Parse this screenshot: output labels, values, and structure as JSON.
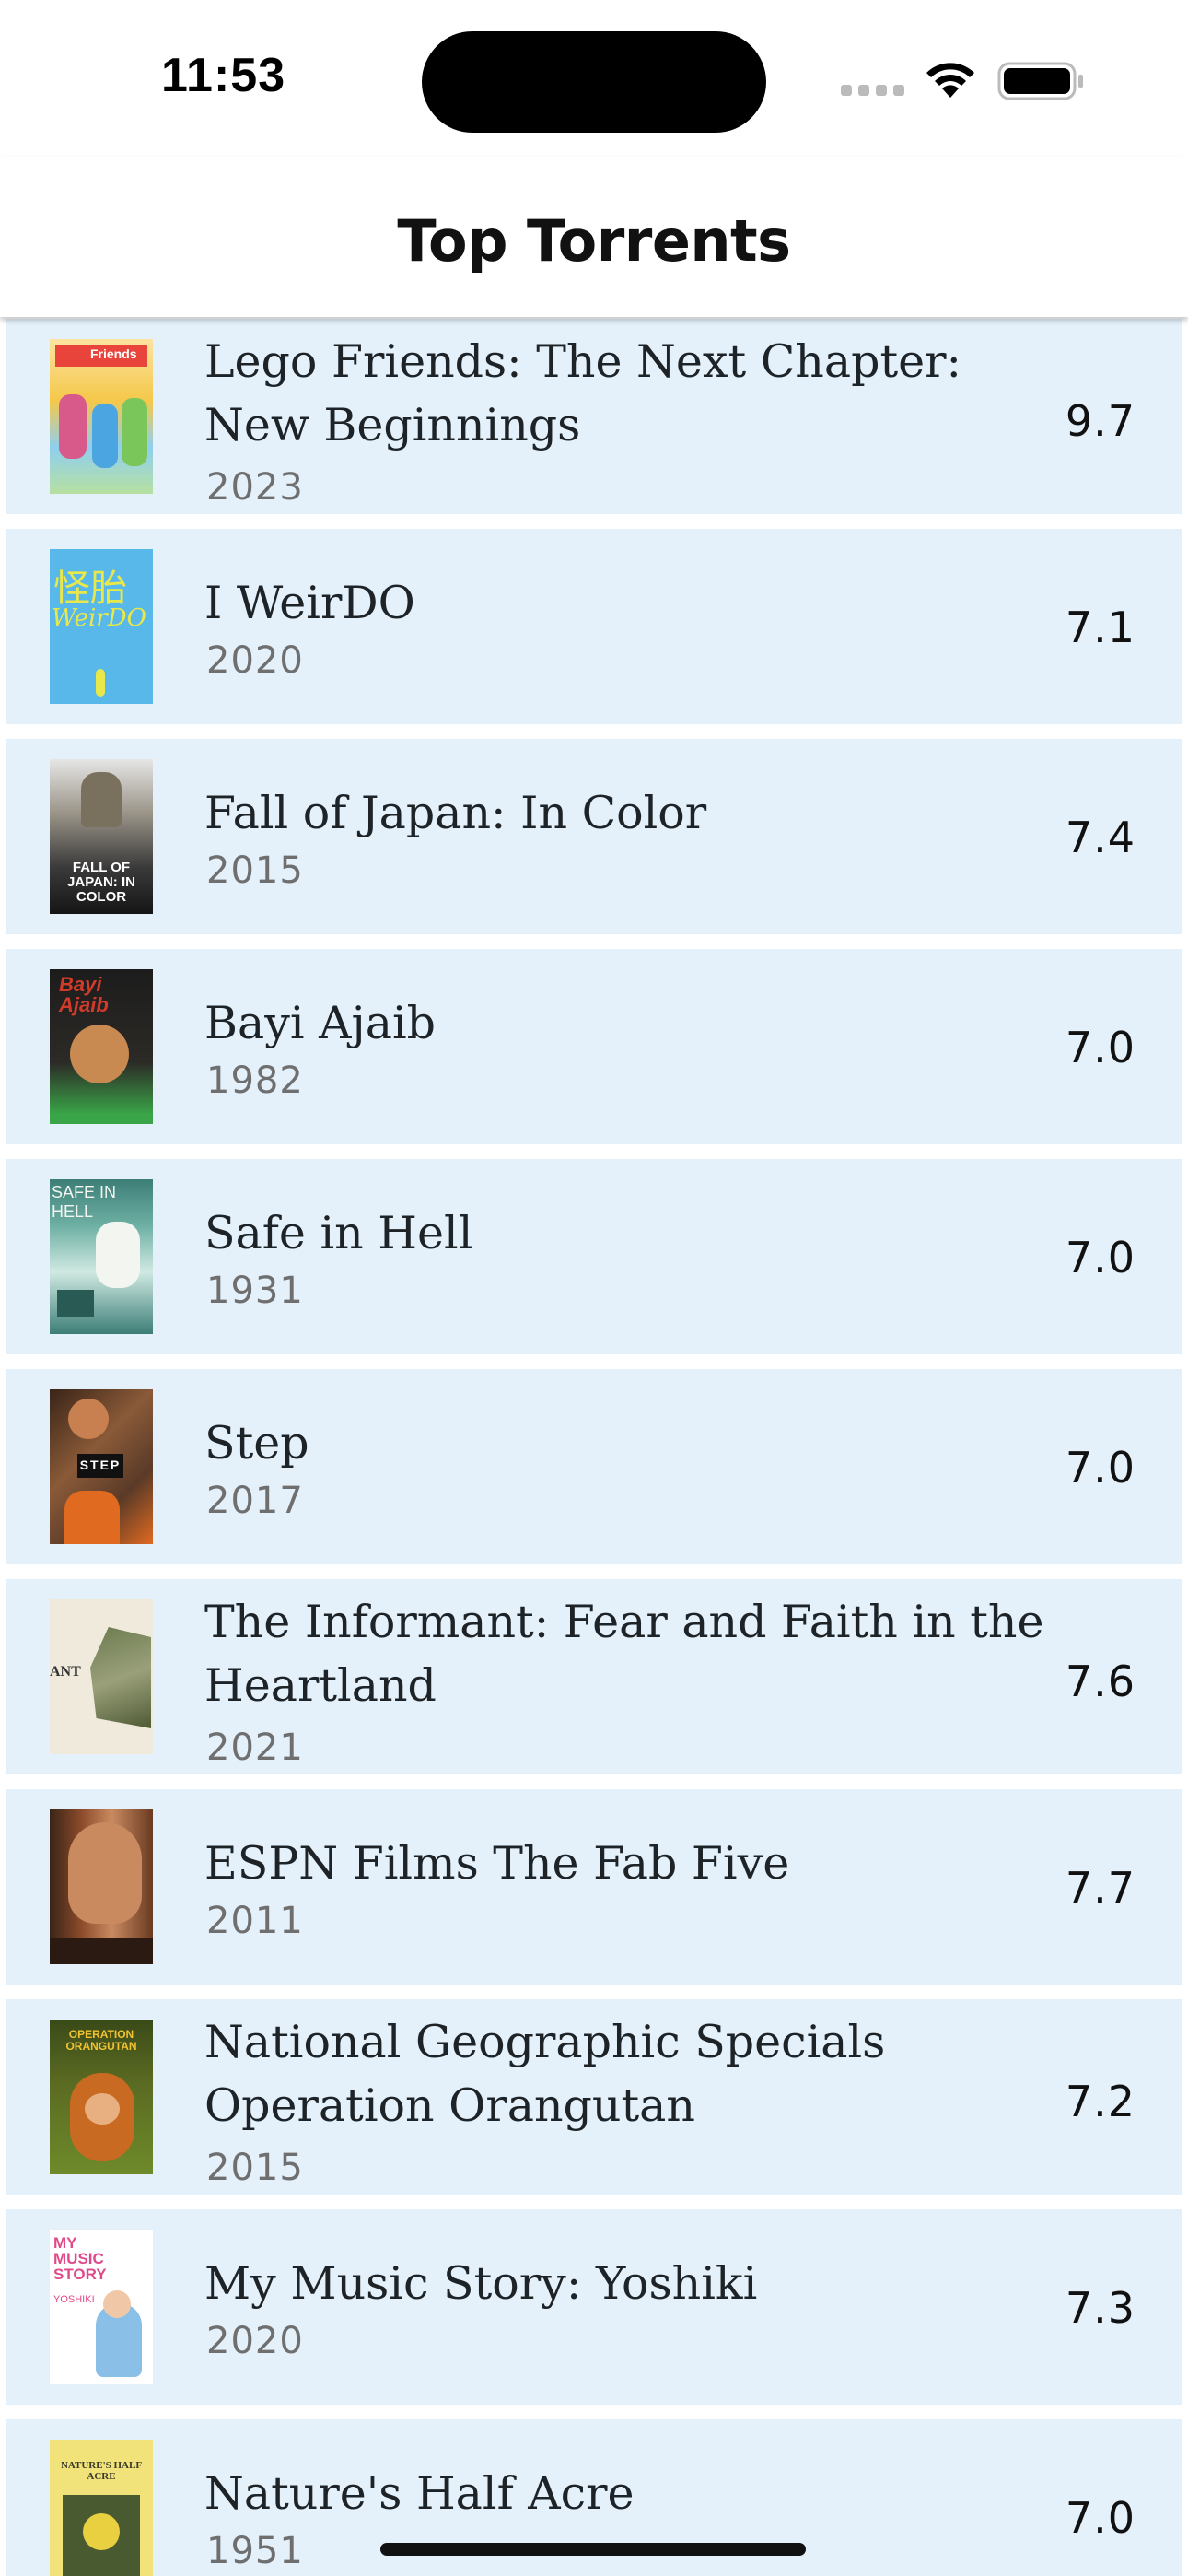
{
  "status_bar": {
    "time": "11:53"
  },
  "header": {
    "title": "Top Torrents"
  },
  "movies": [
    {
      "title": "Lego Friends: The Next Chapter: New Beginnings",
      "year": "2023",
      "rating": "9.7",
      "poster_colors": [
        "#fdd24a",
        "#e8443b",
        "#4aa5e0"
      ]
    },
    {
      "title": "I WeirDO",
      "year": "2020",
      "rating": "7.1",
      "poster_colors": [
        "#58b8ea",
        "#e8e84a",
        "#5aaedd"
      ]
    },
    {
      "title": "Fall of Japan: In Color",
      "year": "2015",
      "rating": "7.4",
      "poster_colors": [
        "#3a3a3a",
        "#8a8070",
        "#1a1a1a"
      ]
    },
    {
      "title": "Bayi Ajaib",
      "year": "1982",
      "rating": "7.0",
      "poster_colors": [
        "#1c1c1c",
        "#d23b2a",
        "#3aa548"
      ]
    },
    {
      "title": "Safe in Hell",
      "year": "1931",
      "rating": "7.0",
      "poster_colors": [
        "#cfe9e2",
        "#3c7e77",
        "#f2f5f0"
      ]
    },
    {
      "title": "Step",
      "year": "2017",
      "rating": "7.0",
      "poster_colors": [
        "#5a3a28",
        "#c88050",
        "#e06a20"
      ]
    },
    {
      "title": "The Informant: Fear and Faith in the Heartland",
      "year": "2021",
      "rating": "7.6",
      "poster_colors": [
        "#efeadb",
        "#6b7a4e",
        "#e9e2cc"
      ]
    },
    {
      "title": "ESPN Films The Fab Five",
      "year": "2011",
      "rating": "7.7",
      "poster_colors": [
        "#8a4a2a",
        "#c98a60",
        "#3a2418"
      ]
    },
    {
      "title": "National Geographic Specials Operation Orangutan",
      "year": "2015",
      "rating": "7.2",
      "poster_colors": [
        "#3a4a18",
        "#c86a22",
        "#6e8a2a"
      ]
    },
    {
      "title": "My Music Story: Yoshiki",
      "year": "2020",
      "rating": "7.3",
      "poster_colors": [
        "#ffffff",
        "#e04a8a",
        "#8ac0e8"
      ]
    },
    {
      "title": "Nature's Half Acre",
      "year": "1951",
      "rating": "7.0",
      "poster_colors": [
        "#f1e27a",
        "#4a5a30",
        "#e8d040"
      ]
    }
  ],
  "poster_labels": {
    "fall_of_japan": "FALL OF JAPAN: IN COLOR",
    "step": "STEP",
    "orangutan": "OPERATION ORANGUTAN",
    "yoshiki": "MY MUSIC STORY",
    "weirdo": "WeirDO",
    "bayi": "Bayi Ajaib",
    "safe": "SAFE IN HELL",
    "informant": "ANT",
    "lego": "Friends",
    "nature": "NATURE'S HALF ACRE",
    "yoshiki_sub": "YOSHIKI"
  }
}
